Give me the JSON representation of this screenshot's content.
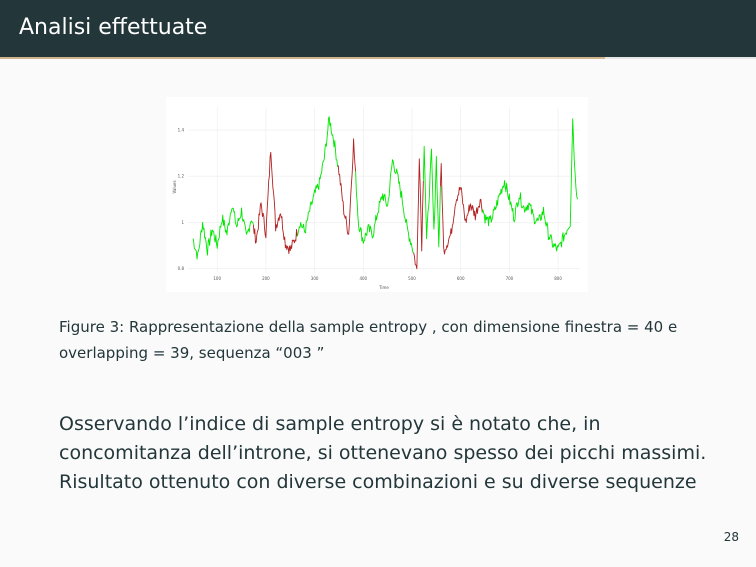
{
  "header": {
    "title": "Analisi effettuate"
  },
  "caption": {
    "label": "Figure 3:",
    "text": "Rappresentazione della sample entropy , con dimensione finestra = 40 e overlapping = 39, sequenza “003 ”"
  },
  "body": {
    "lines": [
      "Osservando l’indice di sample entropy si è notato che, in",
      "concomitanza dell’introne, si ottenevano spesso dei picchi massimi.",
      "Risultato ottenuto con diverse combinazioni e su diverse sequenze"
    ]
  },
  "page_number": "28",
  "chart_data": {
    "type": "line",
    "xlabel": "Time",
    "ylabel": "Values",
    "xlim": [
      40,
      845
    ],
    "ylim": [
      0.78,
      1.5
    ],
    "x_ticks": [
      100,
      200,
      300,
      400,
      500,
      600,
      700,
      800
    ],
    "x_tick_labels": [
      "100",
      "200",
      "300",
      "400",
      "500",
      "600",
      "700",
      "800"
    ],
    "y_ticks": [
      0.8,
      1.0,
      1.2,
      1.4
    ],
    "y_tick_labels": [
      "0.8",
      "1",
      "1.2",
      "1.4"
    ],
    "grid": true,
    "legend": "none",
    "colors": {
      "high": "#00e600",
      "low": "#b22222"
    },
    "segments": [
      {
        "state": "high",
        "start": 50,
        "end": 175
      },
      {
        "state": "low",
        "start": 175,
        "end": 265
      },
      {
        "state": "high",
        "start": 265,
        "end": 350
      },
      {
        "state": "low",
        "start": 350,
        "end": 385
      },
      {
        "state": "high",
        "start": 385,
        "end": 505
      },
      {
        "state": "low",
        "start": 505,
        "end": 525
      },
      {
        "state": "high",
        "start": 525,
        "end": 560
      },
      {
        "state": "low",
        "start": 560,
        "end": 645
      },
      {
        "state": "high",
        "start": 645,
        "end": 840
      }
    ],
    "series_points": [
      [
        50,
        0.93
      ],
      [
        60,
        0.85
      ],
      [
        70,
        1.0
      ],
      [
        80,
        0.88
      ],
      [
        90,
        0.97
      ],
      [
        100,
        0.9
      ],
      [
        110,
        1.02
      ],
      [
        120,
        0.95
      ],
      [
        130,
        1.08
      ],
      [
        140,
        0.98
      ],
      [
        150,
        1.05
      ],
      [
        160,
        0.93
      ],
      [
        170,
        1.02
      ],
      [
        180,
        0.92
      ],
      [
        190,
        1.08
      ],
      [
        200,
        0.95
      ],
      [
        210,
        1.32
      ],
      [
        220,
        0.98
      ],
      [
        230,
        1.05
      ],
      [
        240,
        0.91
      ],
      [
        250,
        0.88
      ],
      [
        260,
        0.93
      ],
      [
        270,
        1.0
      ],
      [
        280,
        0.96
      ],
      [
        290,
        1.05
      ],
      [
        300,
        1.12
      ],
      [
        310,
        1.17
      ],
      [
        320,
        1.28
      ],
      [
        330,
        1.45
      ],
      [
        340,
        1.35
      ],
      [
        350,
        1.22
      ],
      [
        360,
        1.05
      ],
      [
        370,
        0.95
      ],
      [
        380,
        1.35
      ],
      [
        390,
        1.0
      ],
      [
        400,
        0.92
      ],
      [
        410,
        0.97
      ],
      [
        420,
        0.95
      ],
      [
        430,
        1.05
      ],
      [
        440,
        1.12
      ],
      [
        450,
        1.07
      ],
      [
        460,
        1.27
      ],
      [
        470,
        1.2
      ],
      [
        480,
        1.1
      ],
      [
        490,
        0.97
      ],
      [
        500,
        0.9
      ],
      [
        505,
        0.85
      ],
      [
        510,
        0.79
      ],
      [
        515,
        1.3
      ],
      [
        520,
        0.9
      ],
      [
        525,
        1.35
      ],
      [
        530,
        0.92
      ],
      [
        540,
        1.3
      ],
      [
        545,
        0.95
      ],
      [
        550,
        1.28
      ],
      [
        555,
        0.9
      ],
      [
        560,
        1.25
      ],
      [
        565,
        0.88
      ],
      [
        570,
        0.9
      ],
      [
        580,
        0.95
      ],
      [
        590,
        1.1
      ],
      [
        600,
        1.15
      ],
      [
        610,
        1.0
      ],
      [
        620,
        1.08
      ],
      [
        630,
        1.03
      ],
      [
        640,
        1.1
      ],
      [
        650,
        1.02
      ],
      [
        660,
        1.0
      ],
      [
        670,
        1.05
      ],
      [
        680,
        1.12
      ],
      [
        690,
        1.18
      ],
      [
        700,
        1.1
      ],
      [
        710,
        1.02
      ],
      [
        720,
        1.12
      ],
      [
        730,
        1.06
      ],
      [
        740,
        1.08
      ],
      [
        750,
        1.02
      ],
      [
        760,
        1.0
      ],
      [
        770,
        1.05
      ],
      [
        780,
        0.95
      ],
      [
        790,
        0.9
      ],
      [
        800,
        0.88
      ],
      [
        810,
        0.93
      ],
      [
        820,
        0.98
      ],
      [
        825,
        1.0
      ],
      [
        830,
        1.45
      ],
      [
        835,
        1.2
      ],
      [
        840,
        1.1
      ]
    ]
  }
}
